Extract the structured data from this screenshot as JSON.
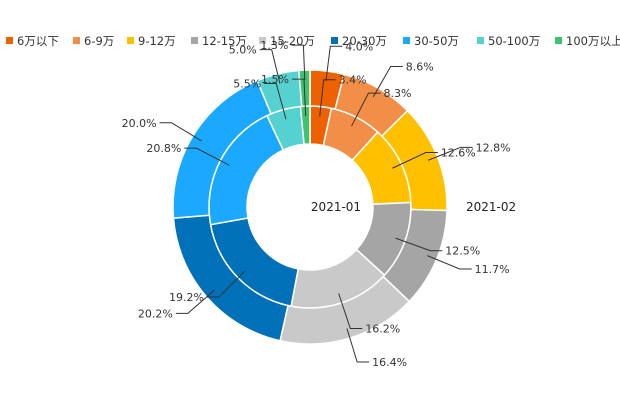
{
  "chart_data": {
    "type": "pie",
    "variant": "nested-donut",
    "categories": [
      "6万以下",
      "6-9万",
      "9-12万",
      "12-15万",
      "15-20万",
      "20-30万",
      "30-50万",
      "50-100万",
      "100万以上"
    ],
    "colors": [
      "#ee6100",
      "#f28e48",
      "#ffc000",
      "#a5a5a5",
      "#c9c9c9",
      "#0070b8",
      "#1aa9ff",
      "#55d2cf",
      "#3ec46e"
    ],
    "series": [
      {
        "name": "2021-01",
        "ring": "inner",
        "values": [
          3.4,
          8.3,
          12.6,
          12.5,
          16.2,
          19.2,
          20.8,
          5.5,
          1.5
        ],
        "labels": [
          "3.4%",
          "8.3%",
          "12.6%",
          "12.5%",
          "16.2%",
          "19.2%",
          "20.8%",
          "5.5%",
          "1.5%"
        ]
      },
      {
        "name": "2021-02",
        "ring": "outer",
        "values": [
          4.0,
          8.6,
          12.8,
          11.7,
          16.4,
          20.2,
          20.0,
          5.0,
          1.3
        ],
        "labels": [
          "4.0%",
          "8.6%",
          "12.8%",
          "11.7%",
          "16.4%",
          "20.2%",
          "20.0%",
          "5.0%",
          "1.3%"
        ]
      }
    ],
    "legend_position": "top"
  }
}
